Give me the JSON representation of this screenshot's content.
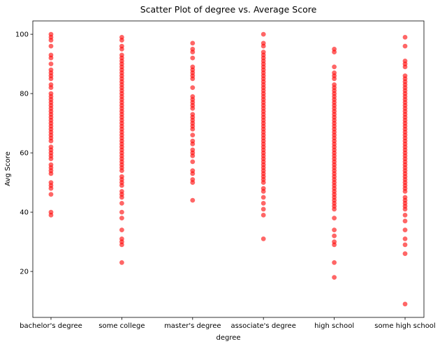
{
  "chart_data": {
    "type": "scatter",
    "title": "Scatter Plot of degree vs. Average Score",
    "xlabel": "degree",
    "ylabel": "Avg Score",
    "categories": [
      "bachelor's degree",
      "some college",
      "master's degree",
      "associate's degree",
      "high school",
      "some high school"
    ],
    "ylim": [
      4.5,
      104.5
    ],
    "yticks": [
      20,
      40,
      60,
      80,
      100
    ],
    "grid": false,
    "legend": "none",
    "marker_color": "#ff0000",
    "series": [
      {
        "category": "bachelor's degree",
        "values": [
          100,
          99,
          98,
          96,
          93,
          92,
          90,
          88,
          87,
          86,
          85,
          83,
          82,
          80,
          79,
          78,
          77,
          76,
          75,
          74,
          73,
          72,
          71,
          70,
          69,
          68,
          67,
          66,
          65,
          64,
          62,
          61,
          60,
          59,
          58,
          56,
          55,
          54,
          53,
          50,
          49,
          48,
          46,
          40,
          39
        ]
      },
      {
        "category": "some college",
        "values": [
          99,
          98,
          96,
          95,
          93,
          92,
          91,
          90,
          89,
          88,
          87,
          86,
          85,
          84,
          83,
          82,
          81,
          80,
          79,
          78,
          77,
          76,
          75,
          74,
          73,
          72,
          71,
          70,
          69,
          68,
          67,
          66,
          65,
          64,
          63,
          62,
          61,
          60,
          59,
          58,
          57,
          56,
          55,
          54,
          52,
          51,
          50,
          49,
          47,
          46,
          45,
          43,
          40,
          38,
          34,
          31,
          30,
          29,
          23
        ]
      },
      {
        "category": "master's degree",
        "values": [
          97,
          95,
          94,
          92,
          89,
          88,
          87,
          86,
          85,
          82,
          79,
          78,
          77,
          76,
          75,
          73,
          72,
          71,
          70,
          69,
          68,
          66,
          64,
          63,
          61,
          60,
          59,
          57,
          54,
          53,
          51,
          50,
          44
        ]
      },
      {
        "category": "associate's degree",
        "values": [
          100,
          97,
          96,
          94,
          93,
          92,
          91,
          90,
          89,
          88,
          87,
          86,
          85,
          84,
          83,
          82,
          81,
          80,
          79,
          78,
          77,
          76,
          75,
          74,
          73,
          72,
          71,
          70,
          69,
          68,
          67,
          66,
          65,
          64,
          63,
          62,
          61,
          60,
          59,
          58,
          57,
          56,
          55,
          54,
          53,
          52,
          51,
          50,
          48,
          47,
          45,
          43,
          41,
          39,
          31
        ]
      },
      {
        "category": "high school",
        "values": [
          95,
          94,
          89,
          87,
          86,
          85,
          83,
          82,
          81,
          80,
          79,
          78,
          77,
          76,
          75,
          74,
          73,
          72,
          71,
          70,
          69,
          68,
          67,
          66,
          65,
          64,
          63,
          62,
          61,
          60,
          59,
          58,
          57,
          56,
          55,
          54,
          53,
          52,
          51,
          50,
          49,
          48,
          47,
          46,
          45,
          44,
          43,
          42,
          41,
          38,
          34,
          32,
          30,
          29,
          23,
          18
        ]
      },
      {
        "category": "some high school",
        "values": [
          99,
          96,
          91,
          90,
          89,
          86,
          85,
          84,
          83,
          82,
          81,
          80,
          79,
          78,
          77,
          76,
          75,
          74,
          73,
          72,
          71,
          70,
          69,
          68,
          67,
          66,
          65,
          64,
          63,
          62,
          61,
          60,
          59,
          58,
          57,
          56,
          55,
          54,
          53,
          52,
          51,
          50,
          49,
          48,
          47,
          45,
          44,
          43,
          42,
          41,
          39,
          37,
          34,
          31,
          29,
          26,
          9
        ]
      }
    ]
  }
}
